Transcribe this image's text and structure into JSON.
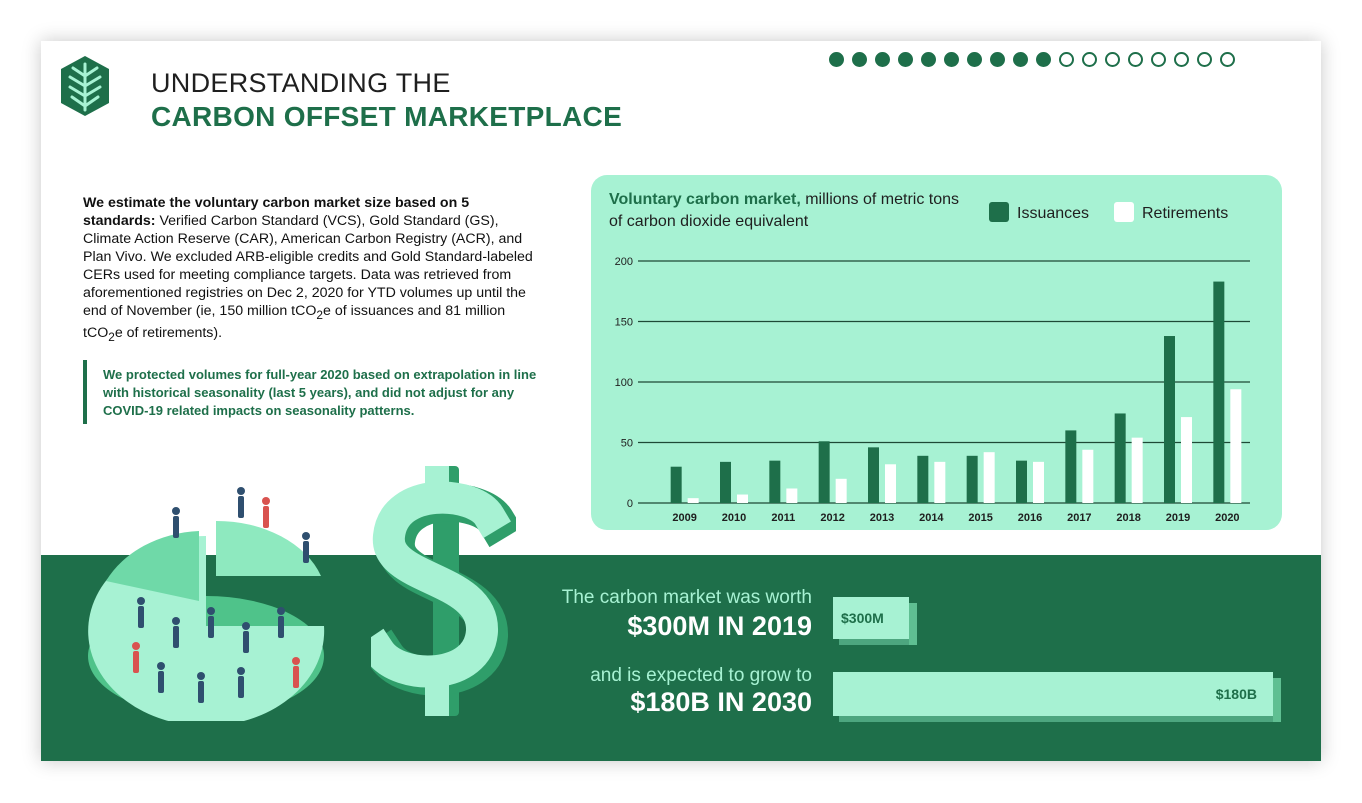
{
  "header": {
    "title_line1": "UNDERSTANDING THE",
    "title_line2": "CARBON OFFSET MARKETPLACE",
    "logo_icon": "leaf-hexagon-icon",
    "progress": {
      "filled": 10,
      "total": 18
    }
  },
  "intro": {
    "bold": "We estimate the voluntary carbon market size based on 5 standards:",
    "text_a": " Verified Carbon Standard (VCS), Gold Standard (GS), Climate Action Reserve (CAR), American Carbon Registry (ACR), and Plan Vivo. We excluded ARB-eligible credits and Gold Standard-labeled CERs used for meeting compliance targets. Data was retrieved from aforementioned registries on Dec 2, 2020 for YTD volumes up until the end of November (ie, 150 million tCO",
    "sub1": "2",
    "text_b": "e of issuances and 81 million tCO",
    "sub2": "2",
    "text_c": "e of retirements)."
  },
  "note": "We protected volumes for full-year 2020 based on extrapolation in line with historical seasonality (last 5 years), and did not adjust for any COVID-19 related impacts on seasonality patterns.",
  "chart_data": {
    "type": "bar",
    "title_bold": "Voluntary carbon market,",
    "title_rest": " millions of metric tons of carbon dioxide equivalent",
    "categories": [
      "2009",
      "2010",
      "2011",
      "2012",
      "2013",
      "2014",
      "2015",
      "2016",
      "2017",
      "2018",
      "2019",
      "2020"
    ],
    "series": [
      {
        "name": "Issuances",
        "color": "#1e6f4a",
        "values": [
          30,
          34,
          35,
          51,
          46,
          39,
          39,
          35,
          60,
          74,
          138,
          183
        ]
      },
      {
        "name": "Retirements",
        "color": "#ffffff",
        "values": [
          4,
          7,
          12,
          20,
          32,
          34,
          42,
          34,
          44,
          54,
          71,
          94
        ]
      }
    ],
    "yticks": [
      0,
      50,
      100,
      150,
      200
    ],
    "ylim": [
      0,
      200
    ],
    "legend": "top-right",
    "grid": true
  },
  "worth": {
    "line1": "The carbon market was worth",
    "line2": "$300M IN 2019",
    "bar_label": "$300M"
  },
  "grow": {
    "line1": "and is expected to grow to",
    "line2": "$180B IN 2030",
    "bar_label": "$180B"
  },
  "colors": {
    "brand": "#1e6f4a",
    "mint": "#a7f2d3"
  },
  "illustrations": [
    "pie-chart-people-icon",
    "dollar-sign-icon"
  ]
}
